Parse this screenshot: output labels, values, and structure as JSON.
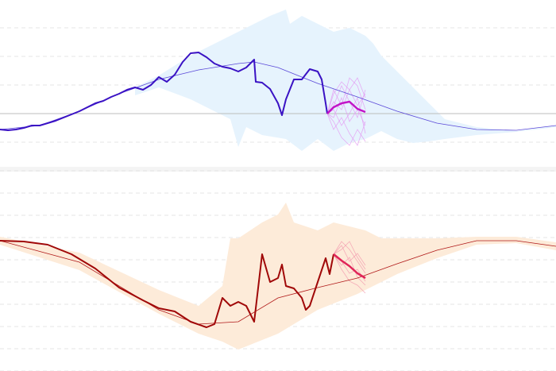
{
  "chart_data": [
    {
      "type": "line",
      "name": "top-panel",
      "xlim": [
        0,
        140
      ],
      "ylim": [
        -71,
        143
      ],
      "grid_step": 36,
      "baseline": 0,
      "colors": {
        "band": "#e6f3fd",
        "observed": "#3a12c4",
        "trend": "#5a48d8",
        "forecast": "#c214c8",
        "ensemble": "#e49af2"
      },
      "band": {
        "upper": {
          "x": [
            34,
            40,
            48,
            54,
            60,
            64,
            68,
            72,
            73,
            76,
            80,
            84,
            88,
            92,
            94,
            96,
            100,
            104,
            108,
            112,
            120,
            130,
            140
          ],
          "y": [
            33,
            48,
            73,
            88,
            103,
            113,
            123,
            131,
            113,
            123,
            113,
            103,
            108,
            98,
            88,
            73,
            53,
            33,
            13,
            -7,
            -17,
            -22,
            -15
          ]
        },
        "lower": {
          "x": [
            34,
            40,
            48,
            54,
            58,
            60,
            62,
            66,
            72,
            76,
            80,
            84,
            88,
            92,
            96,
            100,
            104,
            108,
            112,
            120,
            130,
            140
          ],
          "y": [
            23,
            33,
            18,
            3,
            -7,
            -42,
            -17,
            -27,
            -32,
            -47,
            -32,
            -47,
            -37,
            -32,
            -22,
            -32,
            -37,
            -35,
            -32,
            -27,
            -23,
            -17
          ]
        }
      },
      "trend": {
        "x": [
          0,
          10,
          20,
          30,
          40,
          50,
          60,
          64,
          70,
          80,
          90,
          100,
          110,
          120,
          130,
          140
        ],
        "y": [
          -20,
          -15,
          3,
          25,
          43,
          55,
          63,
          65,
          58,
          38,
          21,
          3,
          -12,
          -20,
          -21,
          -15
        ]
      },
      "observed": {
        "x": [
          0,
          2,
          4,
          6,
          8,
          10,
          12,
          14,
          16,
          18,
          20,
          22,
          24,
          26,
          28,
          30,
          32,
          34,
          36,
          38,
          40,
          42,
          44,
          46,
          48,
          50,
          52,
          54,
          56,
          58,
          60,
          62,
          64,
          64.4,
          66,
          68,
          70,
          71,
          72,
          74,
          76,
          78,
          80,
          81,
          82,
          82.4
        ],
        "y": [
          -20,
          -21,
          -20,
          -18,
          -15,
          -15,
          -12,
          -9,
          -5,
          -1,
          3,
          8,
          13,
          16,
          21,
          25,
          30,
          33,
          30,
          36,
          46,
          40,
          49,
          65,
          76,
          77,
          71,
          63,
          59,
          57,
          53,
          58,
          68,
          40,
          39,
          31,
          13,
          -2,
          18,
          43,
          43,
          56,
          53,
          43,
          13,
          0
        ]
      },
      "forecast": {
        "x": [
          82.4,
          84,
          86,
          88,
          90,
          92
        ],
        "y": [
          0,
          8,
          13,
          15,
          6,
          2
        ]
      },
      "ensemble": {
        "x": [
          82.4,
          84,
          86,
          88,
          90,
          92
        ],
        "series": [
          [
            0,
            25,
            40,
            30,
            45,
            20
          ],
          [
            0,
            -10,
            -30,
            -40,
            -20,
            -35
          ],
          [
            0,
            15,
            5,
            30,
            10,
            25
          ],
          [
            0,
            -5,
            20,
            -10,
            5,
            -15
          ],
          [
            0,
            30,
            10,
            45,
            35,
            5
          ],
          [
            0,
            -20,
            -5,
            -25,
            -40,
            -10
          ],
          [
            0,
            10,
            35,
            15,
            -5,
            30
          ],
          [
            0,
            5,
            -15,
            0,
            20,
            -25
          ]
        ]
      }
    },
    {
      "type": "line",
      "name": "bottom-panel",
      "xlim": [
        0,
        140
      ],
      "ylim": [
        -168,
        85
      ],
      "grid_step": 28,
      "baseline": null,
      "colors": {
        "band": "#fdebd9",
        "observed": "#a00808",
        "trend": "#b01818",
        "forecast": "#e02458",
        "ensemble": "#f39aae"
      },
      "band": {
        "upper": {
          "x": [
            0,
            20,
            40,
            50,
            56,
            58,
            60,
            66,
            70,
            72,
            74,
            80,
            84,
            88,
            92,
            96,
            100,
            110,
            120,
            130,
            140
          ],
          "y": [
            1,
            -19,
            -66,
            -86,
            -61,
            -1,
            -1,
            19,
            29,
            44,
            19,
            9,
            19,
            14,
            9,
            -1,
            -1,
            -1,
            1,
            1,
            -6
          ]
        },
        "lower": {
          "x": [
            0,
            20,
            40,
            50,
            56,
            60,
            70,
            80,
            90,
            100,
            110,
            120,
            130,
            140
          ],
          "y": [
            -9,
            -41,
            -96,
            -121,
            -131,
            -141,
            -121,
            -91,
            -71,
            -46,
            -26,
            -9,
            -7,
            -16
          ]
        }
      },
      "trend": {
        "x": [
          0,
          20,
          40,
          50,
          60,
          70,
          80,
          90,
          100,
          110,
          120,
          130,
          140
        ],
        "y": [
          -4,
          -31,
          -91,
          -109,
          -106,
          -76,
          -63,
          -51,
          -33,
          -16,
          -4,
          -4,
          -11
        ]
      },
      "observed": {
        "x": [
          0,
          6,
          12,
          18,
          24,
          30,
          36,
          40,
          44,
          48,
          52,
          54,
          56,
          58,
          60,
          62,
          64,
          66,
          68,
          70,
          71,
          72,
          74,
          76,
          77,
          78,
          80,
          82,
          83,
          84
        ],
        "y": [
          -4,
          -5,
          -9,
          -21,
          -39,
          -63,
          -79,
          -89,
          -93,
          -106,
          -113,
          -109,
          -76,
          -86,
          -81,
          -86,
          -106,
          -21,
          -56,
          -51,
          -34,
          -61,
          -64,
          -76,
          -91,
          -86,
          -56,
          -26,
          -46,
          -21
        ]
      },
      "forecast": {
        "x": [
          84,
          86,
          88,
          90,
          92
        ],
        "y": [
          -21,
          -29,
          -36,
          -45,
          -51
        ]
      },
      "ensemble": {
        "x": [
          84,
          86,
          88,
          90,
          92
        ],
        "series": [
          [
            -21,
            -5,
            -15,
            -30,
            -45
          ],
          [
            -21,
            -40,
            -55,
            -60,
            -70
          ],
          [
            -21,
            -10,
            -30,
            -20,
            -35
          ],
          [
            -21,
            -35,
            -25,
            -50,
            -60
          ],
          [
            -21,
            -15,
            -5,
            -25,
            -40
          ],
          [
            -21,
            -30,
            -45,
            -40,
            -55
          ]
        ]
      }
    }
  ]
}
